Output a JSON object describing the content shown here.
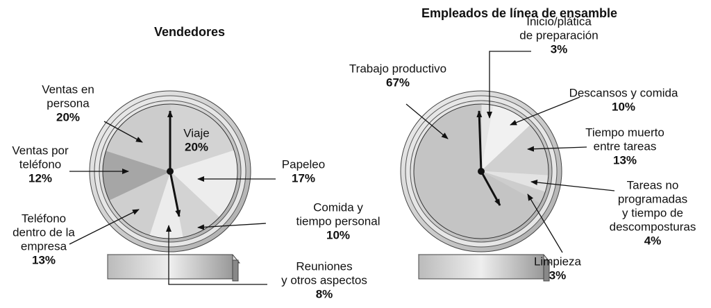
{
  "chart_data": [
    {
      "type": "pie",
      "title": "Vendedores",
      "categories": [
        [
          "Viaje"
        ],
        [
          "Papeleo"
        ],
        [
          "Comida y",
          "tiempo personal"
        ],
        [
          "Reuniones",
          "y otros aspectos"
        ],
        [
          "Teléfono",
          "dentro de la",
          "empresa"
        ],
        [
          "Ventas por",
          "teléfono"
        ],
        [
          "Ventas en",
          "persona"
        ]
      ],
      "values": [
        20,
        17,
        10,
        8,
        13,
        12,
        20
      ],
      "value_labels": [
        "20%",
        "17%",
        "10%",
        "8%",
        "13%",
        "12%",
        "20%"
      ],
      "colors": [
        "#d3d3d3",
        "#ededed",
        "#d3d3d3",
        "#ececec",
        "#cfcfcf",
        "#a6a6a6",
        "#cccccc"
      ]
    },
    {
      "type": "pie",
      "title": "Empleados de línea de ensamble",
      "categories": [
        [
          "Inicio/plática",
          "de preparación"
        ],
        [
          "Descansos y comida"
        ],
        [
          "Tiempo muerto",
          "entre tareas"
        ],
        [
          "Tareas no",
          "programadas",
          "y tiempo de",
          "descomposturas"
        ],
        [
          "Limpieza"
        ],
        [
          "Trabajo productivo"
        ]
      ],
      "values": [
        3,
        10,
        13,
        4,
        3,
        67
      ],
      "value_labels": [
        "3%",
        "10%",
        "13%",
        "4%",
        "3%",
        "67%"
      ],
      "colors": [
        "#e6e6e6",
        "#f1f1f1",
        "#d0d0d0",
        "#e3e3e3",
        "#cdcdcd",
        "#c4c4c4"
      ]
    }
  ]
}
